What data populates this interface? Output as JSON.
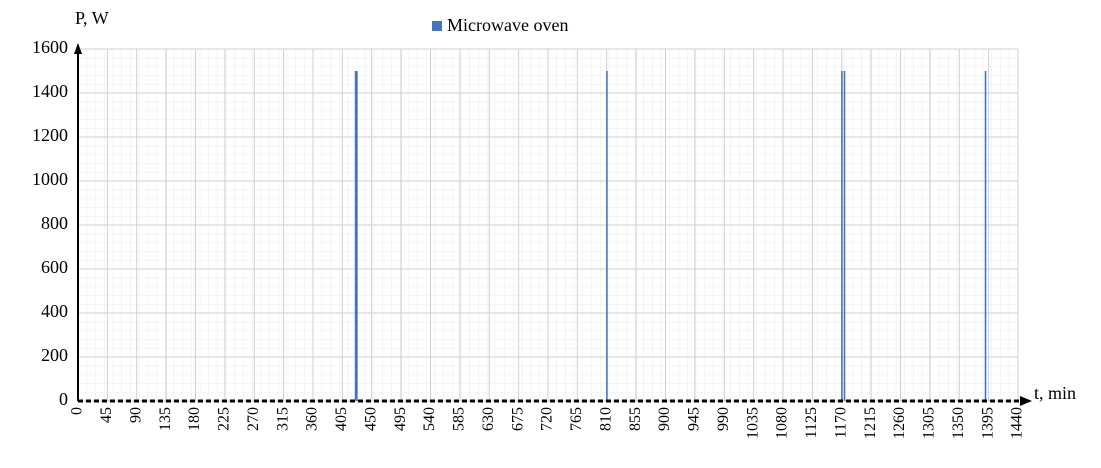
{
  "chart_data": {
    "type": "bar",
    "y_label": "P, W",
    "x_label": "t, min",
    "series": [
      {
        "name": "Microwave oven",
        "color": "#4472c4",
        "x": [
          424,
          425,
          426,
          809,
          1169,
          1173,
          1389
        ],
        "values": [
          1500,
          1500,
          1500,
          1500,
          1500,
          1500,
          1500
        ]
      }
    ],
    "xlim": [
      0,
      1440
    ],
    "xticks": [
      0,
      45,
      90,
      135,
      180,
      225,
      270,
      315,
      360,
      405,
      450,
      495,
      540,
      585,
      630,
      675,
      720,
      765,
      810,
      855,
      900,
      945,
      990,
      1035,
      1080,
      1125,
      1170,
      1215,
      1260,
      1305,
      1350,
      1395,
      1440
    ],
    "ylim": [
      0,
      1600
    ],
    "yticks": [
      0,
      200,
      400,
      600,
      800,
      1000,
      1200,
      1400,
      1600
    ],
    "grid": true,
    "legend": "top"
  }
}
